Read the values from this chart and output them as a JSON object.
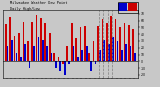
{
  "title": "Milwaukee Weather Dew Point",
  "subtitle": "Daily High/Low",
  "color_high": "#cc0000",
  "color_low": "#0000cc",
  "background": "#c8c8c8",
  "plot_bg": "#c8c8c8",
  "ylim": [
    -25,
    75
  ],
  "yticks": [
    -20,
    -10,
    0,
    10,
    20,
    30,
    40,
    50,
    60,
    70
  ],
  "ytick_labels": [
    "-20",
    "-10",
    "0",
    "10",
    "20",
    "30",
    "40",
    "50",
    "60",
    "70"
  ],
  "vline_indices": [
    21,
    22,
    23,
    24
  ],
  "n_bars": 30,
  "highs": [
    55,
    65,
    38,
    42,
    58,
    30,
    58,
    68,
    64,
    56,
    42,
    12,
    6,
    -4,
    22,
    57,
    34,
    50,
    52,
    12,
    30,
    52,
    62,
    57,
    67,
    62,
    50,
    57,
    54,
    47
  ],
  "lows": [
    22,
    32,
    12,
    6,
    26,
    -10,
    22,
    36,
    32,
    22,
    12,
    -10,
    -14,
    -20,
    -4,
    22,
    6,
    16,
    22,
    -14,
    -4,
    16,
    32,
    26,
    36,
    30,
    16,
    26,
    22,
    12
  ]
}
